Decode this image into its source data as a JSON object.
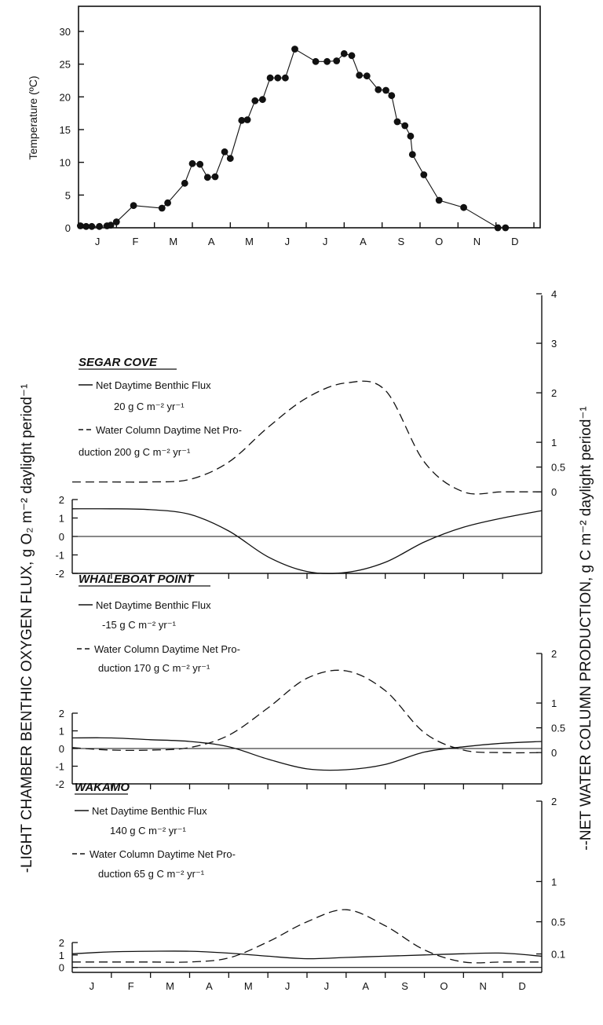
{
  "chart_data": [
    {
      "type": "line",
      "ylabel": "Temperature (ºC)",
      "ylim": [
        0,
        30
      ],
      "yticks": [
        "0",
        "5",
        "10",
        "15",
        "20",
        "25",
        "30"
      ],
      "month_labels": [
        "J",
        "F",
        "M",
        "A",
        "M",
        "J",
        "J",
        "A",
        "S",
        "O",
        "N",
        "D"
      ],
      "x_unit": "month (0 = start of Jan, 12 = end of Dec)",
      "x": [
        0.05,
        0.2,
        0.35,
        0.55,
        0.75,
        0.85,
        1.0,
        1.45,
        2.2,
        2.35,
        2.8,
        3.0,
        3.2,
        3.4,
        3.6,
        3.85,
        4.0,
        4.3,
        4.45,
        4.65,
        4.85,
        5.05,
        5.25,
        5.45,
        5.7,
        6.25,
        6.55,
        6.8,
        7.0,
        7.2,
        7.4,
        7.6,
        7.9,
        8.1,
        8.25,
        8.4,
        8.6,
        8.75,
        8.8,
        9.1,
        9.5,
        10.15,
        11.05,
        11.25
      ],
      "y": [
        0.3,
        0.2,
        0.2,
        0.2,
        0.3,
        0.4,
        0.9,
        3.4,
        3.0,
        3.8,
        6.8,
        9.8,
        9.7,
        7.7,
        7.8,
        11.6,
        10.6,
        16.4,
        16.5,
        19.4,
        19.6,
        22.9,
        22.9,
        22.9,
        27.3,
        25.4,
        25.4,
        25.5,
        26.6,
        26.3,
        23.3,
        23.2,
        21.1,
        21.0,
        20.2,
        16.2,
        15.6,
        14.0,
        11.2,
        8.1,
        4.2,
        3.1,
        0.0,
        0.0
      ]
    },
    {
      "type": "line",
      "title": "SEGAR COVE",
      "legend": [
        "Net Daytime Benthic Flux",
        "20 g C m⁻² yr⁻¹",
        "Water Column Daytime Net Pro-",
        "duction 200 g C m⁻² yr⁻¹"
      ],
      "left_ylim": [
        -2,
        2
      ],
      "left_yticks": [
        "2",
        "1",
        "0",
        "-1",
        "-2"
      ],
      "right_ylim": [
        -0.6,
        4
      ],
      "right_yticks": [
        "4",
        "3",
        "2",
        "1",
        "0.5",
        "0"
      ],
      "x": [
        0,
        1,
        2,
        3,
        4,
        5,
        6,
        7,
        8,
        9,
        10,
        11,
        12
      ],
      "series": [
        {
          "style": "solid",
          "axis": "left",
          "values": [
            1.5,
            1.5,
            1.45,
            1.2,
            0.3,
            -1.1,
            -1.9,
            -1.95,
            -1.4,
            -0.3,
            0.5,
            1.0,
            1.4
          ]
        },
        {
          "style": "dashed",
          "axis": "right",
          "values": [
            0.2,
            0.2,
            0.2,
            0.25,
            0.6,
            1.3,
            1.9,
            2.2,
            2.05,
            0.6,
            0.0,
            0.0,
            0.0
          ]
        }
      ]
    },
    {
      "type": "line",
      "title": "WHALEBOAT POINT",
      "legend": [
        "Net Daytime Benthic Flux",
        "-15 g C m⁻² yr⁻¹",
        "Water Column Daytime Net Pro-",
        "duction 170 g C m⁻² yr⁻¹"
      ],
      "left_ylim": [
        -2,
        2
      ],
      "left_yticks": [
        "2",
        "1",
        "0",
        "-1",
        "-2"
      ],
      "right_ylim": [
        -0.6,
        2
      ],
      "right_yticks": [
        "2",
        "1",
        "0.5",
        "0"
      ],
      "x": [
        0,
        1,
        2,
        3,
        4,
        5,
        6,
        7,
        8,
        9,
        10,
        11,
        12
      ],
      "series": [
        {
          "style": "solid",
          "axis": "left",
          "values": [
            0.6,
            0.6,
            0.5,
            0.4,
            0.1,
            -0.6,
            -1.15,
            -1.2,
            -0.9,
            -0.2,
            0.1,
            0.3,
            0.4
          ]
        },
        {
          "style": "dashed",
          "axis": "right",
          "values": [
            0.1,
            0.05,
            0.05,
            0.1,
            0.35,
            0.9,
            1.5,
            1.65,
            1.25,
            0.4,
            0.05,
            0.0,
            0.0
          ]
        }
      ]
    },
    {
      "type": "line",
      "title": "WAKAMO",
      "legend": [
        "Net Daytime Benthic Flux",
        "140 g C m⁻² yr⁻¹",
        "Water Column Daytime Net Pro-",
        "duction 65 g C m⁻² yr⁻¹"
      ],
      "left_ylim": [
        -0.4,
        2
      ],
      "left_yticks": [
        "2",
        "1",
        "0"
      ],
      "right_ylim": [
        -0.1,
        2
      ],
      "right_yticks": [
        "2",
        "1",
        "0.5",
        "0.1"
      ],
      "month_labels": [
        "J",
        "F",
        "M",
        "A",
        "M",
        "J",
        "J",
        "A",
        "S",
        "O",
        "N",
        "D"
      ],
      "x": [
        0,
        1,
        2,
        3,
        4,
        5,
        6,
        7,
        8,
        9,
        10,
        11,
        12
      ],
      "series": [
        {
          "style": "solid",
          "axis": "left",
          "values": [
            1.1,
            1.25,
            1.3,
            1.3,
            1.15,
            0.9,
            0.7,
            0.8,
            0.9,
            1.0,
            1.1,
            1.15,
            0.9
          ]
        },
        {
          "style": "dashed",
          "axis": "right",
          "values": [
            0.0,
            0.0,
            0.0,
            0.0,
            0.05,
            0.25,
            0.5,
            0.65,
            0.45,
            0.15,
            0.0,
            0.0,
            0.0
          ]
        }
      ]
    }
  ],
  "left_axis_label": "-LIGHT CHAMBER BENTHIC OXYGEN FLUX, g    O₂ m⁻² daylight period⁻¹",
  "right_axis_label": "--NET WATER COLUMN PRODUCTION, g    C m⁻² daylight period⁻¹",
  "colors": {
    "ink": "#111111",
    "background": "#ffffff"
  }
}
